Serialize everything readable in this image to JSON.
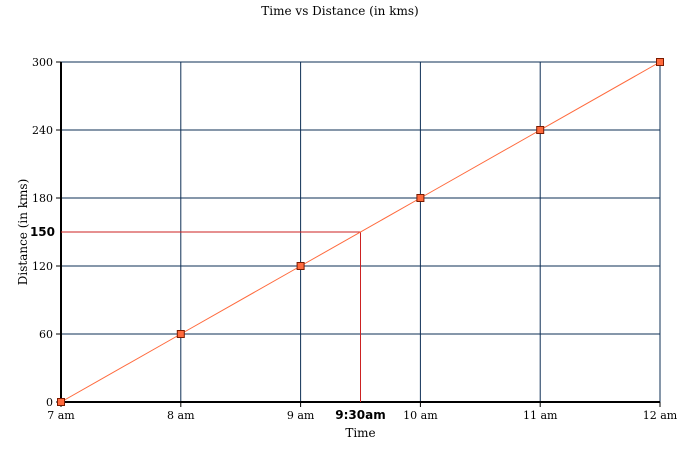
{
  "chart_data": {
    "type": "line",
    "title": "Time vs Distance (in kms)",
    "xlabel": "Time",
    "ylabel": "Distance (in kms)",
    "categories": [
      "7 am",
      "8 am",
      "9 am",
      "10 am",
      "11 am",
      "12 am"
    ],
    "x": [
      7,
      8,
      9,
      10,
      11,
      12
    ],
    "series": [
      {
        "values": [
          0,
          60,
          120,
          180,
          240,
          300
        ]
      }
    ],
    "xlim": [
      7,
      12
    ],
    "ylim": [
      0,
      300
    ],
    "yticks": [
      0,
      60,
      120,
      180,
      240,
      300
    ],
    "grid": true,
    "legend": "none",
    "annotation": {
      "x": 9.5,
      "y": 150,
      "x_label": "9:30am",
      "y_label": "150"
    },
    "colors": {
      "line": "#ff6a3d",
      "marker_fill": "#ff6a3d",
      "marker_stroke": "#7a1a00",
      "grid": "#0e2f56",
      "axis": "#000000",
      "annotation": "#cc2222"
    }
  }
}
